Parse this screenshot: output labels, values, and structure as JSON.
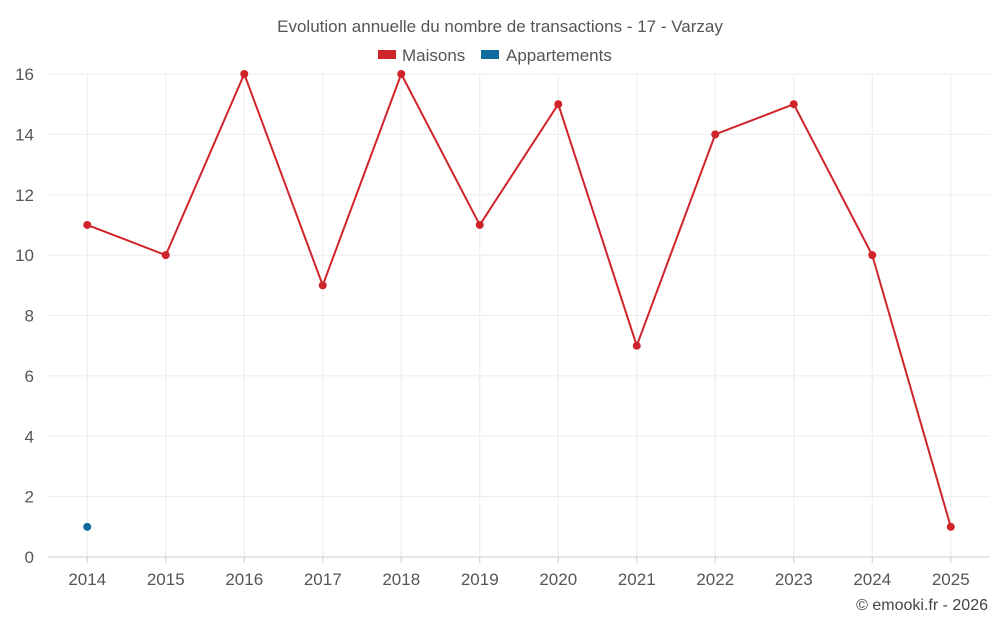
{
  "chart_data": {
    "type": "line",
    "title": "Evolution annuelle du nombre de transactions - 17 - Varzay",
    "categories": [
      "2014",
      "2015",
      "2016",
      "2017",
      "2018",
      "2019",
      "2020",
      "2021",
      "2022",
      "2023",
      "2024",
      "2025"
    ],
    "series": [
      {
        "name": "Maisons",
        "color": "#d0242b",
        "values": [
          11,
          10,
          16,
          9,
          16,
          11,
          15,
          7,
          14,
          15,
          10,
          1
        ]
      },
      {
        "name": "Appartements",
        "color": "#0f6a9d",
        "values": [
          1,
          null,
          null,
          null,
          null,
          null,
          null,
          null,
          null,
          null,
          null,
          null
        ]
      }
    ],
    "ylim": [
      0,
      16
    ],
    "yticks": [
      0,
      2,
      4,
      6,
      8,
      10,
      12,
      14,
      16
    ],
    "xlabel": "",
    "ylabel": "",
    "grid": true,
    "legend_position": "top-center"
  },
  "credit": "© emooki.fr - 2026"
}
